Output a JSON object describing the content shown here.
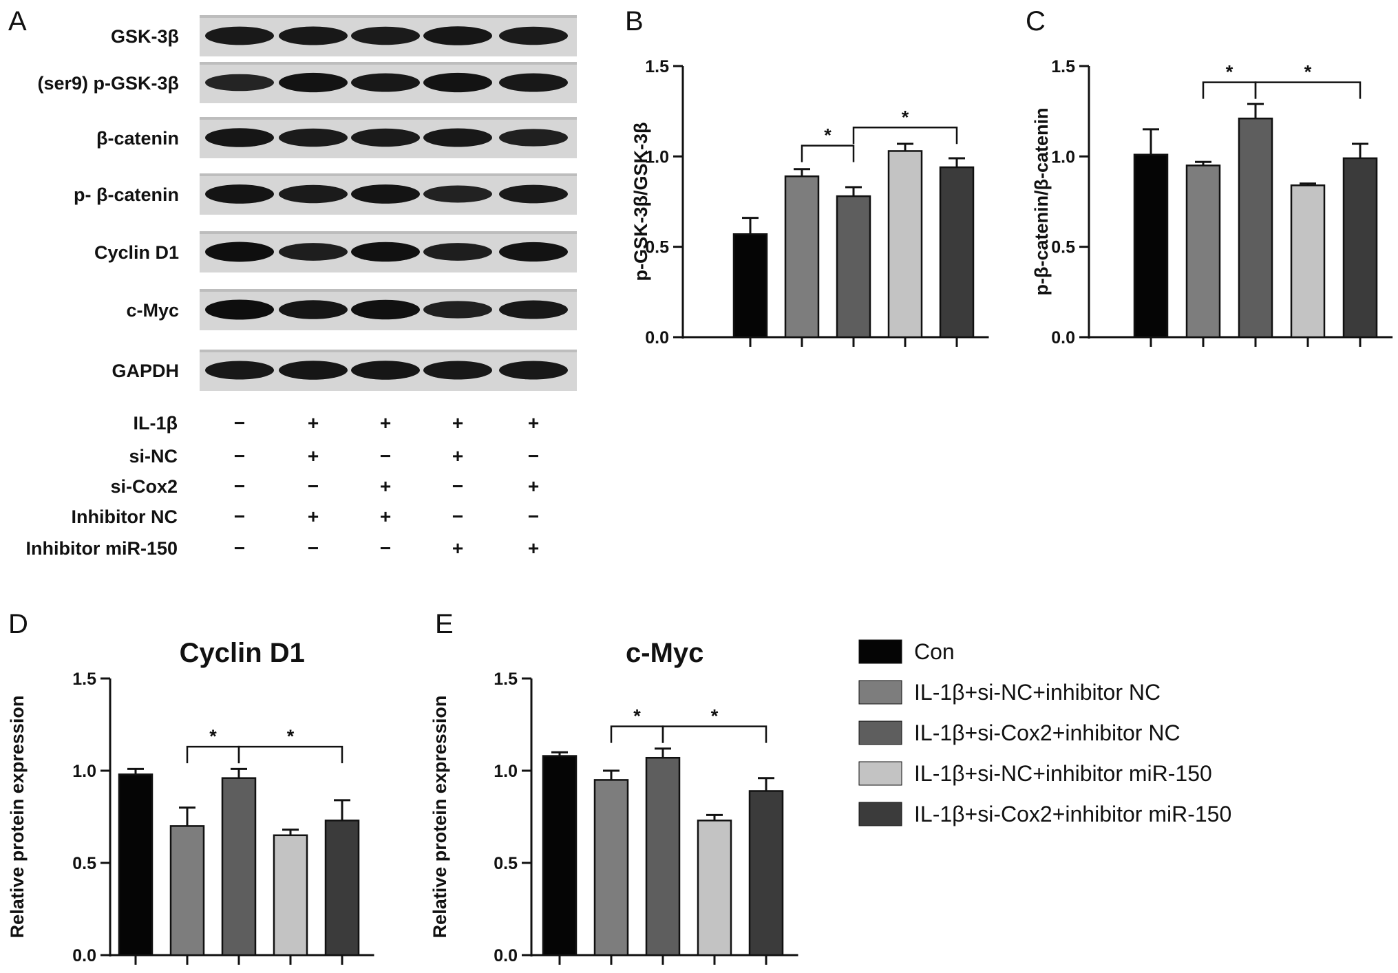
{
  "panel_letters": [
    "A",
    "B",
    "C",
    "D",
    "E"
  ],
  "western_blot": {
    "proteins": [
      "GSK-3β",
      "(ser9) p-GSK-3β",
      "β-catenin",
      "p- β-catenin",
      "Cyclin D1",
      "c-Myc",
      "GAPDH"
    ],
    "band_intensity": [
      [
        0.82,
        0.84,
        0.8,
        0.86,
        0.8
      ],
      [
        0.7,
        0.9,
        0.84,
        0.9,
        0.84
      ],
      [
        0.86,
        0.8,
        0.8,
        0.84,
        0.74
      ],
      [
        0.88,
        0.8,
        0.88,
        0.72,
        0.82
      ],
      [
        0.94,
        0.76,
        0.92,
        0.76,
        0.9
      ],
      [
        0.95,
        0.86,
        0.92,
        0.74,
        0.84
      ],
      [
        0.84,
        0.86,
        0.86,
        0.84,
        0.84
      ]
    ],
    "conditions": [
      {
        "label": "IL-1β",
        "signs": [
          "−",
          "+",
          "+",
          "+",
          "+"
        ]
      },
      {
        "label": "si-NC",
        "signs": [
          "−",
          "+",
          "−",
          "+",
          "−"
        ]
      },
      {
        "label": "si-Cox2",
        "signs": [
          "−",
          "−",
          "+",
          "−",
          "+"
        ]
      },
      {
        "label": "Inhibitor NC",
        "signs": [
          "−",
          "+",
          "+",
          "−",
          "−"
        ]
      },
      {
        "label": "Inhibitor miR-150",
        "signs": [
          "−",
          "−",
          "−",
          "+",
          "+"
        ]
      }
    ]
  },
  "legend": {
    "items": [
      {
        "label": "Con",
        "color": "#050505"
      },
      {
        "label": "IL-1β+si-NC+inhibitor NC",
        "color": "#7d7d7d"
      },
      {
        "label": "IL-1β+si-Cox2+inhibitor NC",
        "color": "#5e5e5e"
      },
      {
        "label": "IL-1β+si-NC+inhibitor miR-150",
        "color": "#c3c3c3"
      },
      {
        "label": "IL-1β+si-Cox2+inhibitor miR-150",
        "color": "#3b3b3b"
      }
    ]
  },
  "chart_data": [
    {
      "panel": "B",
      "type": "bar",
      "title": "",
      "xlabel": "",
      "ylabel": "p-GSK-3β/GSK-3β",
      "ylim": [
        0,
        1.5
      ],
      "yticks": [
        "0.0",
        "0.5",
        "1.0",
        "1.5"
      ],
      "categories": [
        "Con",
        "IL-1β+si-NC+inhibitor NC",
        "IL-1β+si-Cox2+inhibitor NC",
        "IL-1β+si-NC+inhibitor miR-150",
        "IL-1β+si-Cox2+inhibitor miR-150"
      ],
      "values": [
        0.57,
        0.89,
        0.78,
        1.03,
        0.94
      ],
      "errors": [
        0.09,
        0.04,
        0.05,
        0.04,
        0.05
      ],
      "significance": [
        {
          "from": 1,
          "to": 2,
          "label": "*",
          "level": 1.06
        },
        {
          "from": 2,
          "to": 4,
          "label": "*",
          "level": 1.16
        }
      ]
    },
    {
      "panel": "C",
      "type": "bar",
      "title": "",
      "xlabel": "",
      "ylabel": "p-β-catenin/β-catenin",
      "ylim": [
        0,
        1.5
      ],
      "yticks": [
        "0.0",
        "0.5",
        "1.0",
        "1.5"
      ],
      "categories": [
        "Con",
        "IL-1β+si-NC+inhibitor NC",
        "IL-1β+si-Cox2+inhibitor NC",
        "IL-1β+si-NC+inhibitor miR-150",
        "IL-1β+si-Cox2+inhibitor miR-150"
      ],
      "values": [
        1.01,
        0.95,
        1.21,
        0.84,
        0.99
      ],
      "errors": [
        0.14,
        0.02,
        0.08,
        0.01,
        0.08
      ],
      "significance": [
        {
          "from": 1,
          "to": 2,
          "label": "*",
          "level": 1.41
        },
        {
          "from": 2,
          "to": 4,
          "label": "*",
          "level": 1.41
        }
      ]
    },
    {
      "panel": "D",
      "type": "bar",
      "title": "Cyclin D1",
      "xlabel": "",
      "ylabel": "Relative protein expression",
      "ylim": [
        0,
        1.5
      ],
      "yticks": [
        "0.0",
        "0.5",
        "1.0",
        "1.5"
      ],
      "categories": [
        "Con",
        "IL-1β+si-NC+inhibitor NC",
        "IL-1β+si-Cox2+inhibitor NC",
        "IL-1β+si-NC+inhibitor miR-150",
        "IL-1β+si-Cox2+inhibitor miR-150"
      ],
      "values": [
        0.98,
        0.7,
        0.96,
        0.65,
        0.73
      ],
      "errors": [
        0.03,
        0.1,
        0.05,
        0.03,
        0.11
      ],
      "significance": [
        {
          "from": 1,
          "to": 2,
          "label": "*",
          "level": 1.13
        },
        {
          "from": 2,
          "to": 4,
          "label": "*",
          "level": 1.13
        }
      ]
    },
    {
      "panel": "E",
      "type": "bar",
      "title": "c-Myc",
      "xlabel": "",
      "ylabel": "Relative protein expression",
      "ylim": [
        0,
        1.5
      ],
      "yticks": [
        "0.0",
        "0.5",
        "1.0",
        "1.5"
      ],
      "categories": [
        "Con",
        "IL-1β+si-NC+inhibitor NC",
        "IL-1β+si-Cox2+inhibitor NC",
        "IL-1β+si-NC+inhibitor miR-150",
        "IL-1β+si-Cox2+inhibitor miR-150"
      ],
      "values": [
        1.08,
        0.95,
        1.07,
        0.73,
        0.89
      ],
      "errors": [
        0.02,
        0.05,
        0.05,
        0.03,
        0.07
      ],
      "significance": [
        {
          "from": 1,
          "to": 2,
          "label": "*",
          "level": 1.24
        },
        {
          "from": 2,
          "to": 4,
          "label": "*",
          "level": 1.24
        }
      ]
    }
  ]
}
